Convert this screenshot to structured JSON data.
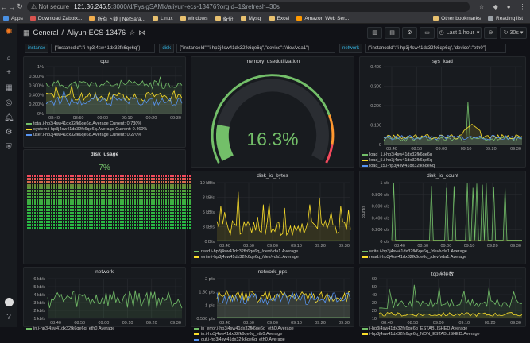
{
  "browser": {
    "security": "Not secure",
    "url_host": "121.36.246.5",
    "url_rest": ":3000/d/FysjgSAMk/aliyun-ecs-13476?orgId=1&refresh=30s",
    "bookmarks": [
      {
        "label": "Apps",
        "color": "#4a90e2"
      },
      {
        "label": "Download Zabbix...",
        "color": "#d9534f"
      },
      {
        "label": "所有下载 | NetSara...",
        "color": "#f0ad4e"
      },
      {
        "label": "Linux",
        "color": "#e8c170"
      },
      {
        "label": "windows",
        "color": "#e8c170"
      },
      {
        "label": "备份",
        "color": "#e8c170"
      },
      {
        "label": "Mysql",
        "color": "#e8c170"
      },
      {
        "label": "Excel",
        "color": "#e8c170"
      },
      {
        "label": "Amazon Web Ser...",
        "color": "#ff9900"
      }
    ],
    "bookmarks_right": [
      {
        "label": "Other bookmarks",
        "color": "#e8c170"
      },
      {
        "label": "Reading list",
        "color": "#9aa0a6"
      }
    ]
  },
  "topnav": {
    "folder": "General",
    "separator": "/",
    "dashboard": "Aliyun-ECS-13476",
    "time_range": "Last 1 hour",
    "refresh": "30s"
  },
  "variables": [
    {
      "label": "instance",
      "value": "{\"instanceId\":\"i-hp3j4sw41dx32fk6qe6q\"}"
    },
    {
      "label": "disk",
      "value": "{\"instanceId\":\"i-hp3j4sw41dx32fk6qe6q\",\"device\":\"/dev/vda1\"}"
    },
    {
      "label": "network",
      "value": "{\"instanceId\":\"i-hp3j4sw41dx32fk6qe6q\",\"device\":\"eth0\"}"
    }
  ],
  "colors": {
    "green": "#73bf69",
    "yellow": "#fade2a",
    "blue": "#5794f2",
    "orange": "#ff9830",
    "red": "#f2495c"
  },
  "panels": {
    "cpu": {
      "title": "cpu",
      "yticks": [
        "1%",
        "0.800%",
        "0.600%",
        "0.400%",
        "0.200%",
        "0%"
      ],
      "xticks": [
        "08:40",
        "08:50",
        "09:00",
        "09:10",
        "09:20",
        "09:30"
      ],
      "legend": [
        {
          "name": "total.i-hp3j4sw41dx32fk6qe6q.Average",
          "current": "Current: 0.730%",
          "color": "#73bf69"
        },
        {
          "name": "system.i-hp3j4sw41dx32fk6qe6q.Average",
          "current": "Current: 0.460%",
          "color": "#fade2a"
        },
        {
          "name": "user.i-hp3j4sw41dx32fk6qe6q.Average",
          "current": "Current: 0.270%",
          "color": "#5794f2"
        }
      ]
    },
    "memory": {
      "title": "memory_usedutilization",
      "value": "16.3%",
      "fraction": 0.163
    },
    "sys_load": {
      "title": "sys_load",
      "yticks": [
        "0.400",
        "0.300",
        "0.200",
        "0.100",
        "0"
      ],
      "xticks": [
        "08:40",
        "08:50",
        "09:00",
        "09:10",
        "09:20",
        "09:30"
      ],
      "legend": [
        {
          "name": "load_1.i-hp3j4sw41dx32fk6qe6q",
          "color": "#73bf69"
        },
        {
          "name": "load_5.i-hp3j4sw41dx32fk6qe6q",
          "color": "#fade2a"
        },
        {
          "name": "load_15.i-hp3j4sw41dx32fk6qe6q",
          "color": "#5794f2"
        }
      ]
    },
    "disk_usage": {
      "title": "disk_usage",
      "value": "7%"
    },
    "disk_io_bytes": {
      "title": "disk_io_bytes",
      "yticks": [
        "10 kB/s",
        "8 kB/s",
        "5 kB/s",
        "3 kB/s",
        "0 B/s"
      ],
      "xticks": [
        "08:40",
        "08:50",
        "09:00",
        "09:10",
        "09:20",
        "09:30"
      ],
      "legend": [
        {
          "name": "read.i-hp3j4sw41dx32fk6qe6q_/dev/vda1.Average",
          "color": "#73bf69"
        },
        {
          "name": "write.i-hp3j4sw41dx32fk6qe6q_/dev/vda1.Average",
          "color": "#fade2a"
        }
      ]
    },
    "disk_io_count": {
      "title": "disk_io_count",
      "ylabel": "count/s",
      "yticks": [
        "1 c/s",
        "0.800 c/s",
        "0.600 c/s",
        "0.400 c/s",
        "0.200 c/s",
        "0 c/s"
      ],
      "xticks": [
        "08:40",
        "08:50",
        "09:00",
        "09:10",
        "09:20",
        "09:30"
      ],
      "legend": [
        {
          "name": "write.i-hp3j4sw41dx32fk6qe6q_/dev/vda1.Average",
          "color": "#73bf69"
        },
        {
          "name": "read.i-hp3j4sw41dx32fk6qe6q_/dev/vda1.Average",
          "color": "#fade2a"
        }
      ]
    },
    "network": {
      "title": "network",
      "yticks": [
        "6 kb/s",
        "5 kb/s",
        "4 kb/s",
        "3 kb/s",
        "2 kb/s",
        "1 kb/s"
      ],
      "xticks": [
        "08:40",
        "08:50",
        "09:00",
        "09:10",
        "09:20",
        "09:30"
      ],
      "legend": [
        {
          "name": "in.i-hp3j4sw41dx32fk6qe6q_eth0.Average",
          "color": "#73bf69"
        }
      ]
    },
    "network_pps": {
      "title": "network_pps",
      "yticks": [
        "2 p/s",
        "1.50 p/s",
        "1 p/s",
        "0.500 p/s"
      ],
      "xticks": [
        "08:40",
        "08:50",
        "09:00",
        "09:10",
        "09:20",
        "09:30"
      ],
      "legend": [
        {
          "name": "in_error.i-hp3j4sw41dx32fk6qe6q_eth0.Average",
          "color": "#73bf69"
        },
        {
          "name": "in.i-hp3j4sw41dx32fk6qe6q_eth0.Average",
          "color": "#fade2a"
        },
        {
          "name": "out.i-hp3j4sw41dx32fk6qe6q_eth0.Average",
          "color": "#5794f2"
        }
      ]
    },
    "tcp": {
      "title": "tcp连接数",
      "yticks": [
        "60",
        "50",
        "40",
        "30",
        "20",
        "10"
      ],
      "xticks": [
        "08:40",
        "08:50",
        "09:00",
        "09:10",
        "09:20",
        "09:30"
      ],
      "legend": [
        {
          "name": "i-hp3j4sw41dx32fk6qe6q_ESTABLISHED.Average",
          "color": "#73bf69"
        },
        {
          "name": "i-hp3j4sw41dx32fk6qe6q_NON_ESTABLISHED.Average",
          "color": "#fade2a"
        }
      ]
    }
  }
}
